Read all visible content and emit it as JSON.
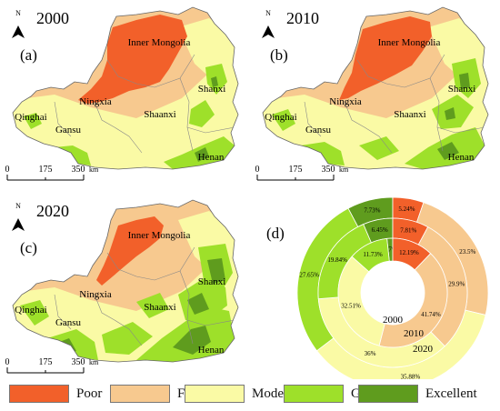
{
  "maps": [
    {
      "year": "2000",
      "panel": "(a)",
      "variant": 0
    },
    {
      "year": "2010",
      "panel": "(b)",
      "variant": 1
    },
    {
      "year": "2020",
      "panel": "(c)",
      "variant": 2
    }
  ],
  "map_labels": {
    "inner_mongolia": "Inner Mongolia",
    "ningxia": "Ningxia",
    "qinghai": "Qinghai",
    "gansu": "Gansu",
    "shaanxi": "Shaanxi",
    "shanxi": "Shanxi",
    "henan": "Henan"
  },
  "north_label": "N",
  "scale": {
    "ticks": [
      "0",
      "175",
      "350"
    ],
    "unit": "km"
  },
  "donut": {
    "panel": "(d)",
    "ring_labels": [
      "2000",
      "2010",
      "2020"
    ],
    "rings": [
      {
        "year": "2020",
        "values": [
          {
            "label": "Excellent",
            "value": 7.73,
            "text": "7.73%"
          },
          {
            "label": "Poor",
            "value": 5.24,
            "text": "5.24%"
          },
          {
            "label": "Fair",
            "value": 23.5,
            "text": "23.5%"
          },
          {
            "label": "Moderate",
            "value": 35.88,
            "text": "35.88%"
          },
          {
            "label": "Good",
            "value": 27.65,
            "text": "27.65%"
          }
        ]
      },
      {
        "year": "2010",
        "values": [
          {
            "label": "Excellent",
            "value": 6.45,
            "text": "6.45%"
          },
          {
            "label": "Poor",
            "value": 7.81,
            "text": "7.81%"
          },
          {
            "label": "Fair",
            "value": 29.9,
            "text": "29.9%"
          },
          {
            "label": "Moderate",
            "value": 36,
            "text": "36%"
          },
          {
            "label": "Good",
            "value": 19.84,
            "text": "19.84%"
          }
        ]
      },
      {
        "year": "2000",
        "values": [
          {
            "label": "Excellent",
            "value": 1.7,
            "text": "1.7%"
          },
          {
            "label": "Poor",
            "value": 12.19,
            "text": "12.19%"
          },
          {
            "label": "Fair",
            "value": 41.74,
            "text": "41.74%"
          },
          {
            "label": "Moderate",
            "value": 32.51,
            "text": "32.51%"
          },
          {
            "label": "Good",
            "value": 11.73,
            "text": "11.73%"
          }
        ]
      }
    ]
  },
  "legend": [
    {
      "label": "Poor",
      "color": "#f2602a"
    },
    {
      "label": "Fair",
      "color": "#f7c98f"
    },
    {
      "label": "Moderate",
      "color": "#fafaa5"
    },
    {
      "label": "Good",
      "color": "#9ee02a"
    },
    {
      "label": "Excellent",
      "color": "#5f9c1e"
    }
  ]
}
